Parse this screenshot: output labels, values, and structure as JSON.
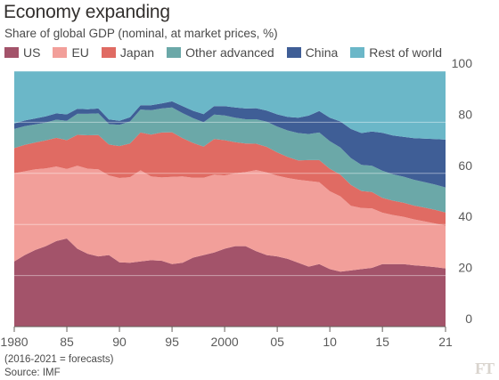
{
  "title": "Economy expanding",
  "subtitle": "Share of global GDP (nominal, at market prices, %)",
  "footnote": "(2016-2021 = forecasts)",
  "source": "Source: IMF",
  "logo_text": "FT",
  "chart_data": {
    "type": "area",
    "stacked": true,
    "x": [
      1980,
      1981,
      1982,
      1983,
      1984,
      1985,
      1986,
      1987,
      1988,
      1989,
      1990,
      1991,
      1992,
      1993,
      1994,
      1995,
      1996,
      1997,
      1998,
      1999,
      2000,
      2001,
      2002,
      2003,
      2004,
      2005,
      2006,
      2007,
      2008,
      2009,
      2010,
      2011,
      2012,
      2013,
      2014,
      2015,
      2016,
      2017,
      2018,
      2019,
      2020,
      2021
    ],
    "ylim": [
      0,
      100
    ],
    "yticks": [
      0,
      20,
      40,
      60,
      80,
      100
    ],
    "xticks": [
      1980,
      1985,
      1990,
      1995,
      2000,
      2005,
      2010,
      2015,
      2021
    ],
    "xtick_labels": [
      "1980",
      "85",
      "90",
      "95",
      "2000",
      "05",
      "10",
      "15",
      "21"
    ],
    "grid": true,
    "legend_position": "top",
    "series": [
      {
        "name": "US",
        "color": "#a3536a",
        "values": [
          25.5,
          28,
          30,
          31.5,
          33.5,
          34.5,
          30.5,
          28.5,
          27.5,
          28,
          25.2,
          25.0,
          25.5,
          26,
          25.8,
          24.5,
          25.0,
          27,
          28,
          29,
          30.5,
          31.5,
          31.5,
          29.5,
          28,
          27.5,
          26.5,
          25,
          23.5,
          24.5,
          22.5,
          21.5,
          22,
          22.5,
          23,
          24.5,
          24.5,
          24.5,
          24.0,
          23.7,
          23.3,
          22.8
        ]
      },
      {
        "name": "EU",
        "color": "#f29f9a",
        "values": [
          34.5,
          32.8,
          31.6,
          30.4,
          29.2,
          27.2,
          32.5,
          33.3,
          34.1,
          31.2,
          33,
          33.5,
          35.7,
          32.8,
          32.6,
          34.1,
          33.8,
          31.3,
          30.3,
          30.5,
          28.7,
          28.5,
          29,
          31.8,
          32.4,
          31.6,
          31.7,
          32.5,
          33.5,
          32,
          30.5,
          29.5,
          25.3,
          23.9,
          23.3,
          20.1,
          19.2,
          18.5,
          18.0,
          17.5,
          17.1,
          16.7
        ]
      },
      {
        "name": "Japan",
        "color": "#e06b63",
        "values": [
          9.9,
          10.4,
          10.5,
          11,
          11.2,
          11.3,
          12.1,
          13.1,
          13.4,
          12.1,
          12.5,
          13.2,
          14.8,
          16.4,
          17.6,
          17.5,
          15.0,
          13.6,
          12.2,
          13.9,
          13.8,
          12.2,
          11.2,
          10.3,
          10,
          9.1,
          8.2,
          7.6,
          8.2,
          8.7,
          8.8,
          8.5,
          8.2,
          6.7,
          6.4,
          5.8,
          5.6,
          5.5,
          5.4,
          5.4,
          5.3,
          5.2
        ]
      },
      {
        "name": "Other advanced",
        "color": "#6ba8a8",
        "values": [
          7.5,
          7.3,
          7.1,
          7,
          7.1,
          7.6,
          8.2,
          8.4,
          8.5,
          8,
          8.3,
          8.6,
          9,
          9.5,
          9.4,
          9.7,
          9.8,
          9.7,
          9.5,
          9.6,
          9.7,
          9.6,
          9.5,
          9.6,
          9.8,
          10.1,
          10.4,
          10.7,
          10.2,
          10.8,
          10.8,
          10.6,
          10.5,
          10.2,
          10.3,
          10.6,
          10.3,
          10.2,
          10.1,
          10.0,
          9.9,
          9.8
        ]
      },
      {
        "name": "China",
        "color": "#3f5e96",
        "values": [
          2.1,
          2.2,
          2.3,
          2.4,
          2.5,
          2.5,
          2.0,
          1.8,
          1.9,
          1.8,
          1.6,
          1.7,
          1.7,
          2.0,
          2.0,
          2.4,
          2.7,
          2.9,
          3.2,
          3.3,
          3.6,
          4.0,
          4.2,
          4.3,
          4.4,
          4.8,
          5.3,
          6.0,
          7.2,
          8.4,
          9.2,
          10.2,
          11.4,
          12.5,
          13.4,
          14.9,
          15.2,
          15.6,
          16.3,
          17.0,
          17.8,
          18.7
        ]
      },
      {
        "name": "Rest of world",
        "color": "#6bb7c8",
        "values": [
          20.5,
          19.3,
          18.5,
          17.7,
          16.5,
          16.9,
          14.7,
          14.9,
          14.6,
          18.9,
          19.4,
          18.0,
          13.3,
          13.3,
          12.6,
          11.8,
          13.7,
          15.5,
          16.8,
          13.7,
          13.7,
          14.2,
          14.6,
          14.5,
          15.4,
          16.9,
          17.9,
          18.2,
          17.4,
          15.6,
          18.2,
          19.7,
          22.6,
          24.2,
          23.6,
          24.1,
          25.2,
          25.7,
          26.2,
          26.4,
          26.6,
          26.8
        ]
      }
    ]
  }
}
